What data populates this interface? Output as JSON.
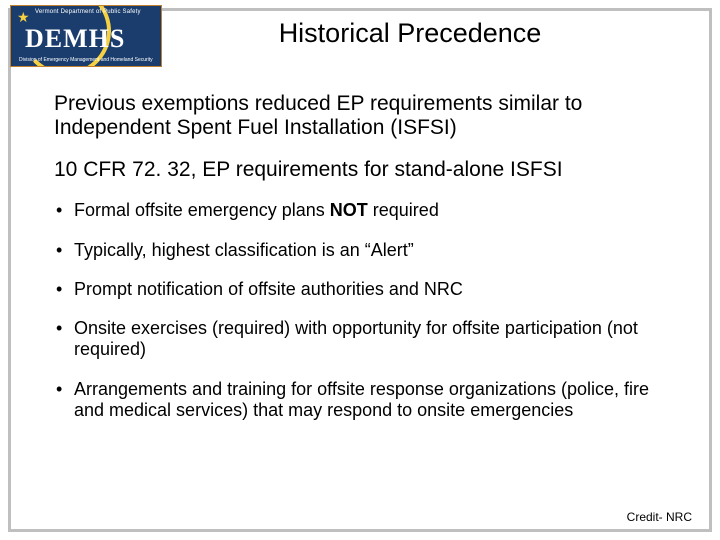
{
  "logo": {
    "top_text": "Vermont Department of Public Safety",
    "main": "DEMHS",
    "bottom_text": "Division of Emergency Management and Homeland Security",
    "bg_color": "#1a3d6e",
    "border_color": "#c08030",
    "accent_color": "#f5d040"
  },
  "title": "Historical Precedence",
  "para1": "Previous exemptions reduced EP requirements similar to Independent Spent Fuel Installation (ISFSI)",
  "para2": "10 CFR 72. 32, EP requirements for stand-alone ISFSI",
  "bullets": [
    {
      "pre": "Formal offsite emergency plans ",
      "bold": "NOT",
      "post": " required"
    },
    {
      "pre": "Typically, highest classification is an “Alert”",
      "bold": "",
      "post": ""
    },
    {
      "pre": "Prompt notification of offsite authorities and NRC",
      "bold": "",
      "post": ""
    },
    {
      "pre": "Onsite exercises (required) with opportunity for offsite participation (not required)",
      "bold": "",
      "post": ""
    },
    {
      "pre": "Arrangements and training for offsite response organizations (police, fire and medical services) that may respond to onsite emergencies",
      "bold": "",
      "post": ""
    }
  ],
  "credit": "Credit- NRC",
  "colors": {
    "border": "#bfbfbf",
    "text": "#000000",
    "background": "#ffffff"
  },
  "fontsizes": {
    "title": 27,
    "para": 21,
    "bullet": 18,
    "credit": 12
  }
}
